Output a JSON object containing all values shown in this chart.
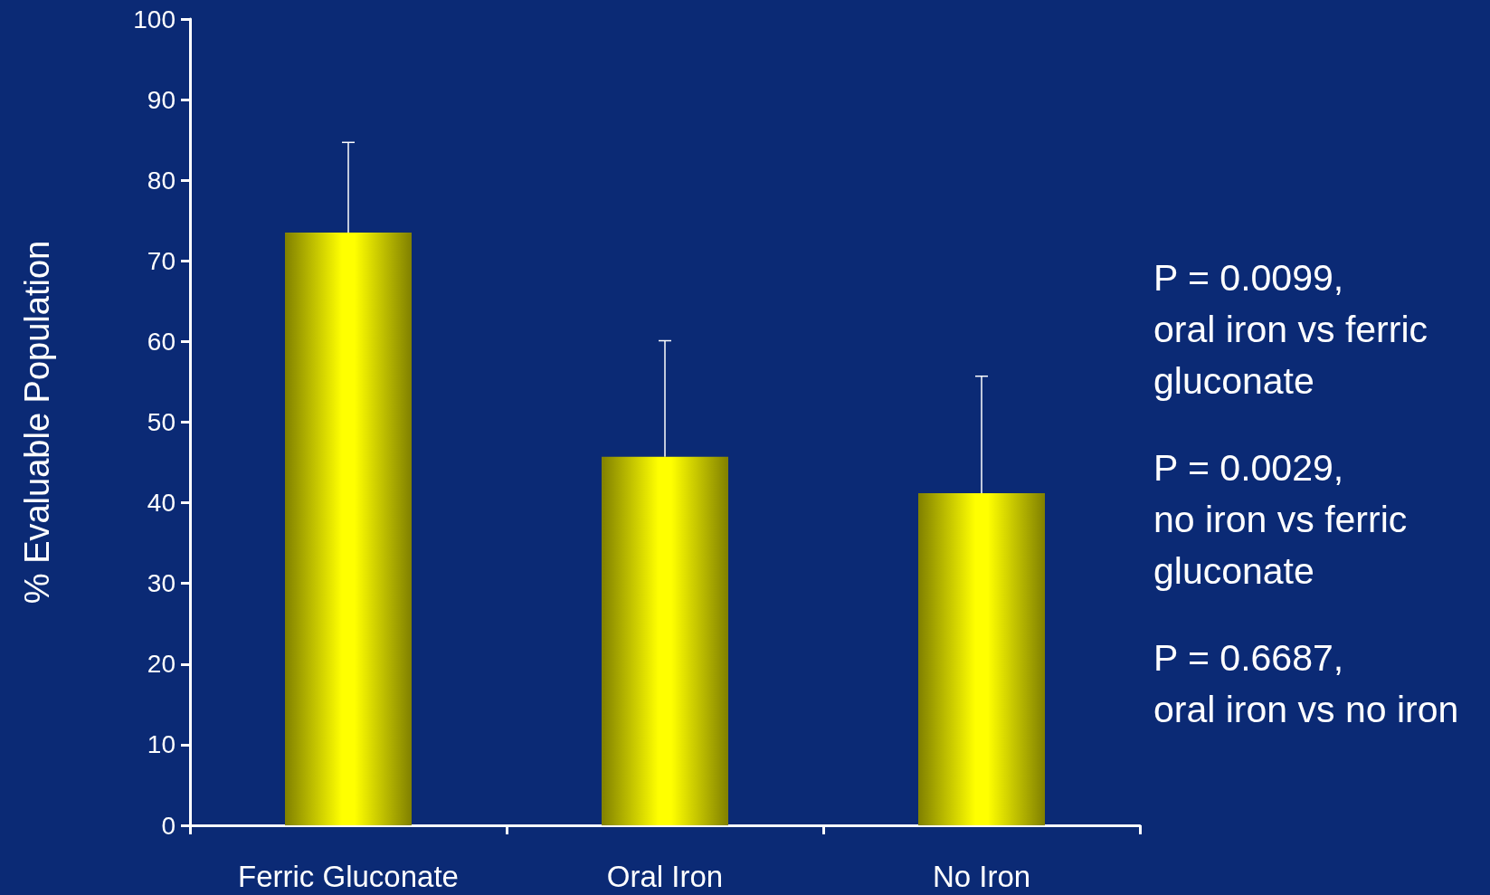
{
  "chart_data": {
    "type": "bar",
    "ylabel": "% Evaluable Population",
    "categories": [
      "Ferric Gluconate",
      "Oral Iron",
      "No Iron"
    ],
    "values": [
      73.5,
      45.7,
      41.2
    ],
    "color": "#ffff00",
    "errors": [
      [
        73.5,
        84.7
      ],
      [
        45.7,
        60.1
      ],
      [
        41.2,
        55.7
      ]
    ],
    "ylim": [
      0,
      100
    ],
    "yticks": [
      0,
      10,
      20,
      30,
      40,
      50,
      60,
      70,
      80,
      90,
      100
    ],
    "grid": false,
    "annotations": [
      "P = 0.0099, oral iron vs ferric gluconate",
      "P = 0.0029, no iron vs ferric gluconate",
      "P = 0.6687, oral iron vs no iron"
    ]
  }
}
